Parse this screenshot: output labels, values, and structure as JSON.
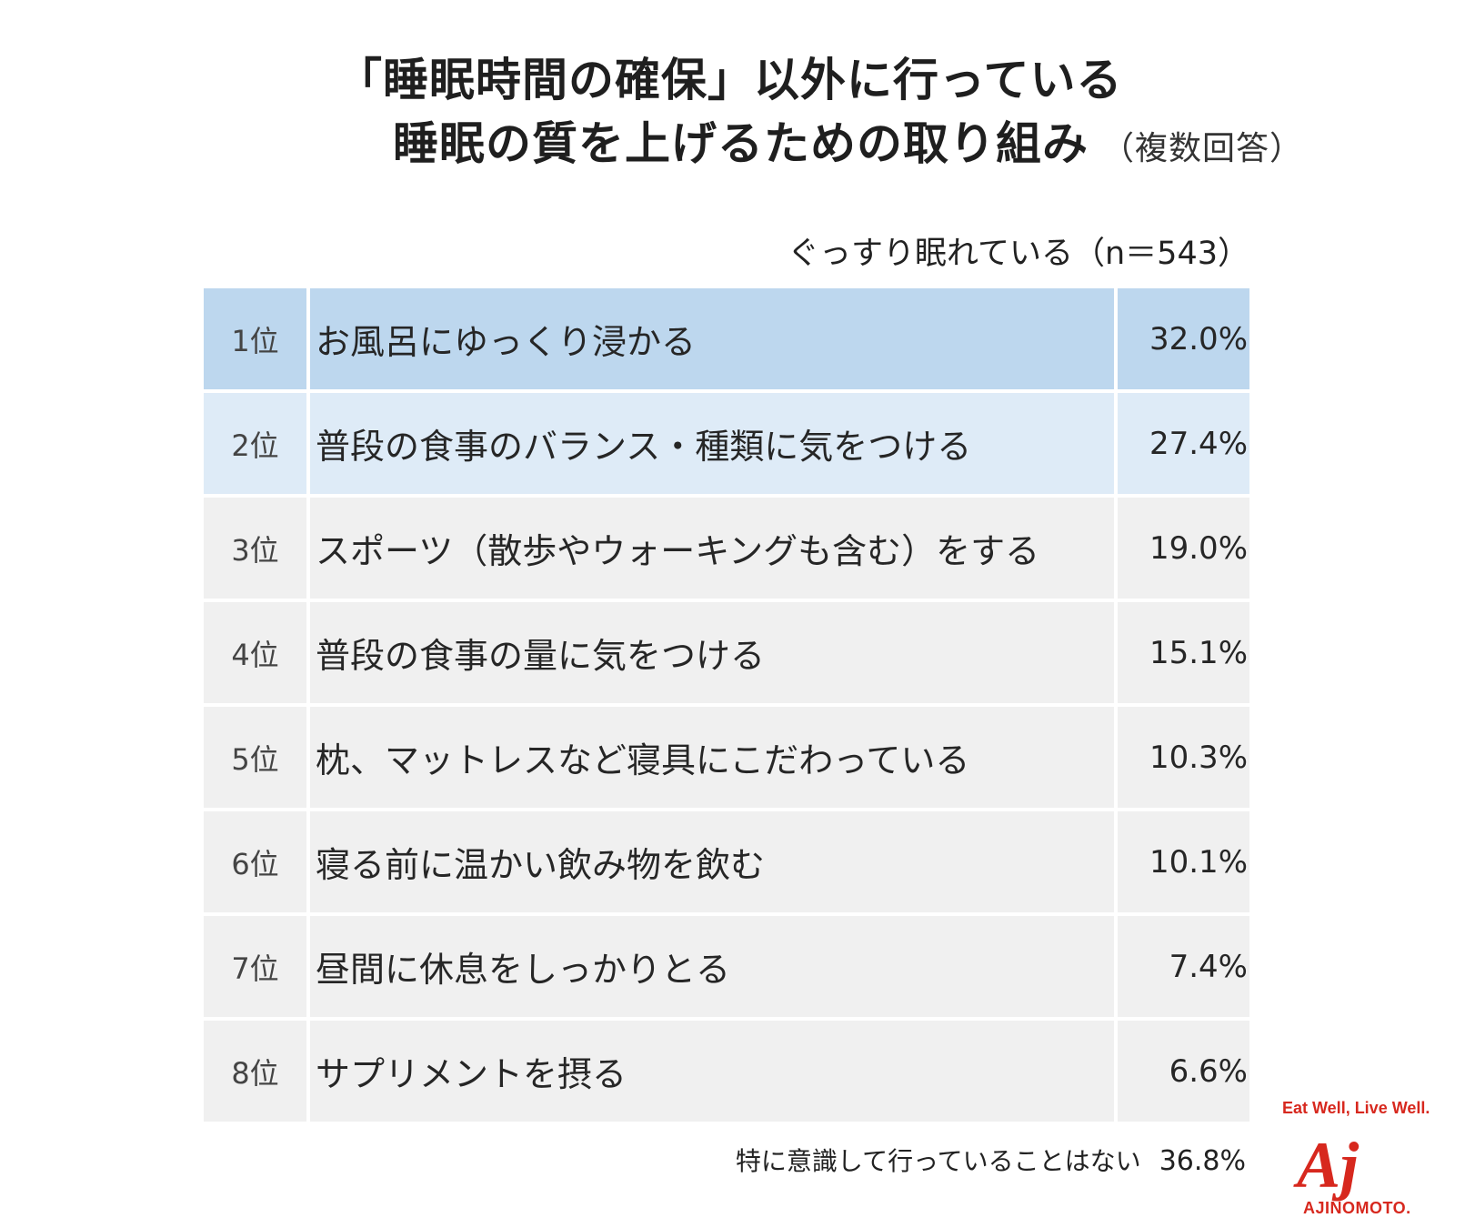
{
  "title": {
    "line1": "「睡眠時間の確保」以外に行っている",
    "line2": "睡眠の質を上げるための取り組み",
    "note": "（複数回答）"
  },
  "group_label": "ぐっすり眠れている（n＝543）",
  "chart_data": {
    "type": "table",
    "rows": [
      {
        "rank": "1位",
        "label": "お風呂にゆっくり浸かる",
        "value": "32.0%"
      },
      {
        "rank": "2位",
        "label": "普段の食事のバランス・種類に気をつける",
        "value": "27.4%"
      },
      {
        "rank": "3位",
        "label": "スポーツ（散歩やウォーキングも含む）をする",
        "value": "19.0%"
      },
      {
        "rank": "4位",
        "label": "普段の食事の量に気をつける",
        "value": "15.1%"
      },
      {
        "rank": "5位",
        "label": "枕、マットレスなど寝具にこだわっている",
        "value": "10.3%"
      },
      {
        "rank": "6位",
        "label": "寝る前に温かい飲み物を飲む",
        "value": "10.1%"
      },
      {
        "rank": "7位",
        "label": "昼間に休息をしっかりとる",
        "value": "7.4%"
      },
      {
        "rank": "8位",
        "label": "サプリメントを摂る",
        "value": "6.6%"
      }
    ]
  },
  "footnote": {
    "label": "特に意識して行っていることはない",
    "value": "36.8%"
  },
  "logo": {
    "tagline": "Eat Well, Live Well.",
    "brand": "AJINOMOTO.",
    "mark": "Aj"
  },
  "colors": {
    "highlight1": "#bdd7ee",
    "highlight2": "#deebf7",
    "default_row": "#f0f0f0",
    "brand_red": "#d7281e"
  }
}
